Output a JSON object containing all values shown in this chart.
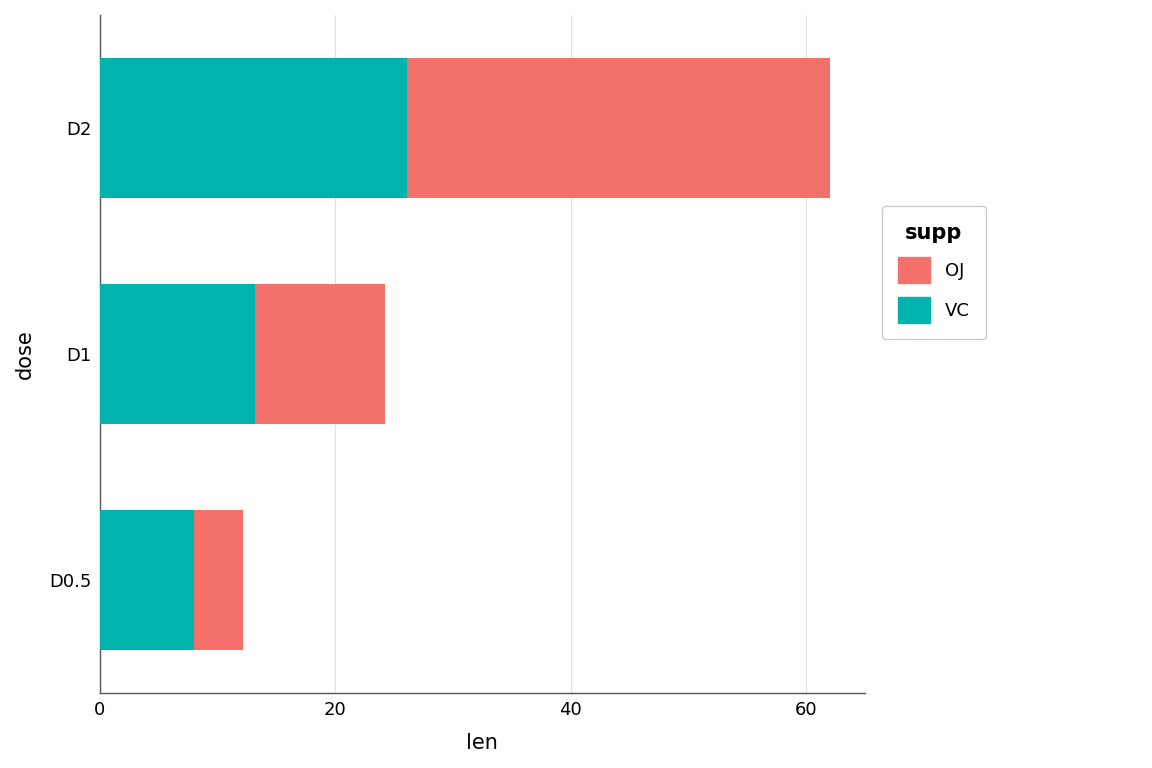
{
  "categories": [
    "D0.5",
    "D1",
    "D2"
  ],
  "vc_values": [
    7.98,
    13.23,
    26.14
  ],
  "oj_values": [
    4.24,
    10.97,
    35.86
  ],
  "oj_color": "#F4706A",
  "vc_color": "#00B4AD",
  "background_color": "#FFFFFF",
  "grid_color": "#E0E0E0",
  "panel_background": "#FFFFFF",
  "xlabel": "len",
  "ylabel": "dose",
  "legend_title": "supp",
  "legend_labels": [
    "OJ",
    "VC"
  ],
  "xlim": [
    0,
    65
  ],
  "x_ticks": [
    0,
    20,
    40,
    60
  ],
  "axis_label_fontsize": 15,
  "tick_fontsize": 13,
  "legend_fontsize": 13,
  "legend_title_fontsize": 15,
  "bar_height": 0.62
}
